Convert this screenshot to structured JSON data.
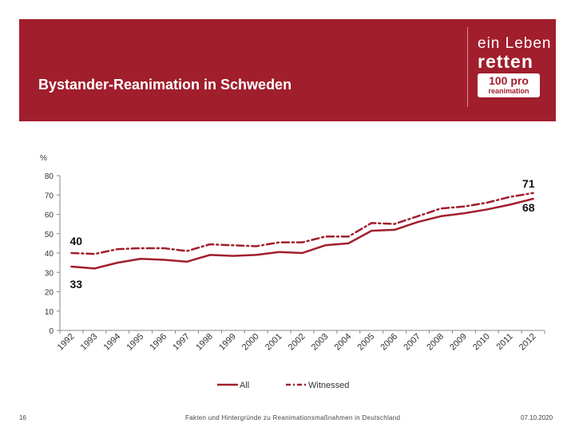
{
  "slide": {
    "title": "Bystander-Reanimation in Schweden",
    "logo": {
      "line1": "ein Leben",
      "line2": "retten",
      "badge_top": "100 pro",
      "badge_bottom": "reanimation"
    },
    "footer": {
      "page_number": "16",
      "center_text": "Fakten und Hintergründe zu Reanimationsmaßnahmen in Deutschland",
      "date": "07.10.2020"
    },
    "colors": {
      "band": "#a11e2c",
      "series": "#a11e2c"
    }
  },
  "chart_data": {
    "type": "line",
    "title": "",
    "ylabel": "%",
    "xlabel": "",
    "ylim": [
      0,
      80
    ],
    "yticks": [
      "0",
      "10",
      "20",
      "30",
      "40",
      "50",
      "60",
      "70",
      "80"
    ],
    "categories": [
      "1992",
      "1993",
      "1994",
      "1995",
      "1996",
      "1997",
      "1998",
      "1999",
      "2000",
      "2001",
      "2002",
      "2003",
      "2004",
      "2005",
      "2006",
      "2007",
      "2008",
      "2009",
      "2010",
      "2011",
      "2012"
    ],
    "series": [
      {
        "name": "All",
        "style": "solid",
        "values": [
          33,
          32,
          35,
          37,
          36.5,
          35.5,
          39,
          38.5,
          39,
          40.5,
          40,
          44,
          45,
          51.5,
          52,
          56,
          59,
          60.5,
          62.5,
          65,
          68
        ]
      },
      {
        "name": "Witnessed",
        "style": "dashdot",
        "values": [
          40,
          39.5,
          42,
          42.5,
          42.5,
          41,
          44.5,
          44,
          43.5,
          45.5,
          45.5,
          48.5,
          48.5,
          55.5,
          55,
          59,
          63,
          64,
          66,
          69,
          71
        ]
      }
    ],
    "annotations": [
      {
        "text": "71",
        "series": "Witnessed",
        "category": "2012"
      },
      {
        "text": "68",
        "series": "All",
        "category": "2012"
      },
      {
        "text": "40",
        "series": "Witnessed",
        "category": "1992"
      },
      {
        "text": "33",
        "series": "All",
        "category": "1992"
      }
    ],
    "legend": "bottom-center",
    "grid": false
  }
}
